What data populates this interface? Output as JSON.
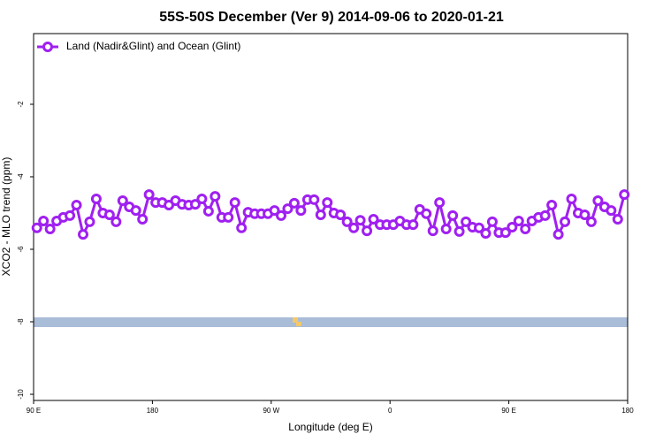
{
  "chart_data": {
    "type": "line",
    "title": "55S-50S December (Ver 9)   2014-09-06 to 2020-01-21",
    "x_label": "Longitude (deg E)",
    "y_label": "XCO2 - MLO trend (ppm)",
    "legend": "top-left",
    "xlim": [
      90,
      540
    ],
    "xticks": [
      {
        "value": 90,
        "label": "90 E"
      },
      180,
      {
        "value": 270,
        "label": "90 W"
      },
      {
        "value": 360,
        "label": "0"
      },
      {
        "value": 450,
        "label": "90 E"
      },
      {
        "value": 540,
        "label": "180"
      }
    ],
    "ylim": [
      -10.17,
      -0.05
    ],
    "yticks": [
      -10,
      -8,
      -6,
      -4,
      -2
    ],
    "x": [
      92.5,
      97.5,
      102.5,
      107.5,
      112.5,
      117.5,
      122.5,
      127.5,
      132.5,
      137.5,
      142.5,
      147.5,
      152.5,
      157.5,
      162.5,
      167.5,
      172.5,
      177.5,
      182.5,
      187.5,
      192.5,
      197.5,
      202.5,
      207.5,
      212.5,
      217.5,
      222.5,
      227.5,
      232.5,
      237.5,
      242.5,
      247.5,
      252.5,
      257.5,
      262.5,
      267.5,
      272.5,
      277.5,
      282.5,
      287.5,
      292.5,
      297.5,
      302.5,
      307.5,
      312.5,
      317.5,
      322.5,
      327.5,
      332.5,
      337.5,
      342.5,
      347.5,
      352.5,
      357.5,
      362.5,
      367.5,
      372.5,
      377.5,
      382.5,
      387.5,
      392.5,
      397.5,
      402.5,
      407.5,
      412.5,
      417.5,
      422.5,
      427.5,
      432.5,
      437.5,
      442.5,
      447.5,
      452.5,
      457.5,
      462.5,
      467.5,
      472.5,
      477.5,
      482.5,
      487.5,
      492.5,
      497.5,
      502.5,
      507.5,
      512.5,
      517.5,
      522.5,
      527.5,
      532.5,
      537.5
    ],
    "series": [
      {
        "name": "Land (Nadir&Glint) and Ocean (Glint)",
        "color": "#a020f0",
        "values": [
          -5.41,
          -5.22,
          -5.44,
          -5.22,
          -5.12,
          -5.07,
          -4.78,
          -5.59,
          -5.24,
          -4.61,
          -5.0,
          -5.05,
          -5.24,
          -4.66,
          -4.83,
          -4.93,
          -5.17,
          -4.49,
          -4.71,
          -4.71,
          -4.78,
          -4.66,
          -4.76,
          -4.78,
          -4.76,
          -4.61,
          -4.95,
          -4.54,
          -5.12,
          -5.12,
          -4.71,
          -5.41,
          -4.98,
          -5.02,
          -5.02,
          -5.02,
          -4.93,
          -5.07,
          -4.88,
          -4.73,
          -4.93,
          -4.63,
          -4.63,
          -5.05,
          -4.71,
          -5.0,
          -5.05,
          -5.24,
          -5.41,
          -5.2,
          -5.49,
          -5.17,
          -5.32,
          -5.32,
          -5.32,
          -5.22,
          -5.32,
          -5.32,
          -4.9,
          -5.02,
          -5.49,
          -4.71,
          -5.44,
          -5.07,
          -5.51,
          -5.24,
          -5.39,
          -5.41,
          -5.56,
          -5.24,
          -5.54,
          -5.54,
          -5.39,
          -5.22,
          -5.44,
          -5.22,
          -5.12,
          -5.07,
          -4.78,
          -5.59,
          -5.24,
          -4.61,
          -5.0,
          -5.05,
          -5.24,
          -4.66,
          -4.83,
          -4.93,
          -5.17,
          -4.49
        ]
      }
    ]
  }
}
